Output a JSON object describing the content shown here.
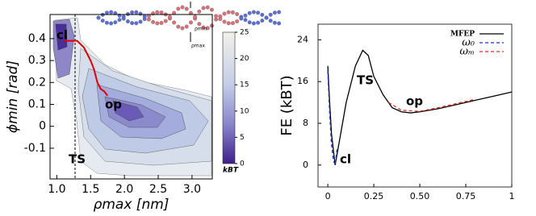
{
  "chart_data": [
    {
      "type": "contour",
      "x_label": "ρmax [nm]",
      "y_label": "ϕmin [rad]",
      "xlim": [
        0.9,
        3.3
      ],
      "xticks": [
        {
          "value": 1,
          "label": "1.0"
        },
        1.5,
        {
          "value": 2,
          "label": "2.0"
        },
        2.5,
        {
          "value": 3,
          "label": "3.0"
        }
      ],
      "ylim": [
        -0.24,
        0.51
      ],
      "yticks": [
        -0.1,
        0,
        0.1,
        0.2,
        0.3,
        0.4
      ],
      "path": {
        "color": "#e00000",
        "x": [
          1.1,
          1.3,
          1.4,
          1.5,
          1.55,
          1.6,
          1.65,
          1.7,
          1.75
        ],
        "values": [
          0.39,
          0.39,
          0.36,
          0.3,
          0.26,
          0.2,
          0.17,
          0.16,
          0.14
        ]
      },
      "ts_line": {
        "x": 1.27,
        "label": "TS"
      },
      "annotations": [
        "cl",
        "op",
        "ρmin",
        "ρmax"
      ],
      "colorbar": {
        "label": "kBT",
        "lim": [
          0,
          25
        ],
        "ticks": [
          0,
          5,
          10,
          15,
          20,
          25
        ]
      }
    },
    {
      "type": "line",
      "y_label": "FE (kBT)",
      "xlim": [
        -0.053,
        1
      ],
      "xticks": [
        0,
        0.25,
        {
          "value": 0.5,
          "label": "0.50"
        },
        0.75,
        1
      ],
      "ylim": [
        -4.2,
        27
      ],
      "yticks": [
        0,
        8,
        16,
        24
      ],
      "legend": "upper right",
      "annotations": [
        "TS",
        "op",
        "cl"
      ],
      "series": [
        {
          "name": "MFEP",
          "color": "#000000",
          "dash": "none",
          "x": [
            0,
            0.01,
            0.02,
            0.04,
            0.06,
            0.1,
            0.15,
            0.19,
            0.22,
            0.25,
            0.3,
            0.35,
            0.4,
            0.45,
            0.5,
            0.6,
            0.7,
            0.8,
            0.9,
            1.0
          ],
          "values": [
            19,
            12,
            6,
            0,
            4,
            12,
            19,
            22,
            21,
            17,
            13.5,
            11,
            10.2,
            10,
            10.2,
            10.8,
            11.6,
            12.4,
            13.2,
            14
          ]
        },
        {
          "name": "ω₀",
          "color": "#1a2fd0",
          "dash": "4 3",
          "x": [
            0,
            0.01,
            0.02,
            0.03,
            0.04,
            0.05
          ],
          "values": [
            18,
            10,
            4,
            1,
            0,
            3
          ]
        },
        {
          "name": "ωₘ",
          "color": "#e03020",
          "dash": "4 3",
          "x": [
            0.33,
            0.4,
            0.5,
            0.6,
            0.7,
            0.8
          ],
          "values": [
            12,
            10.5,
            10.3,
            11,
            11.8,
            12.6
          ]
        }
      ]
    }
  ]
}
